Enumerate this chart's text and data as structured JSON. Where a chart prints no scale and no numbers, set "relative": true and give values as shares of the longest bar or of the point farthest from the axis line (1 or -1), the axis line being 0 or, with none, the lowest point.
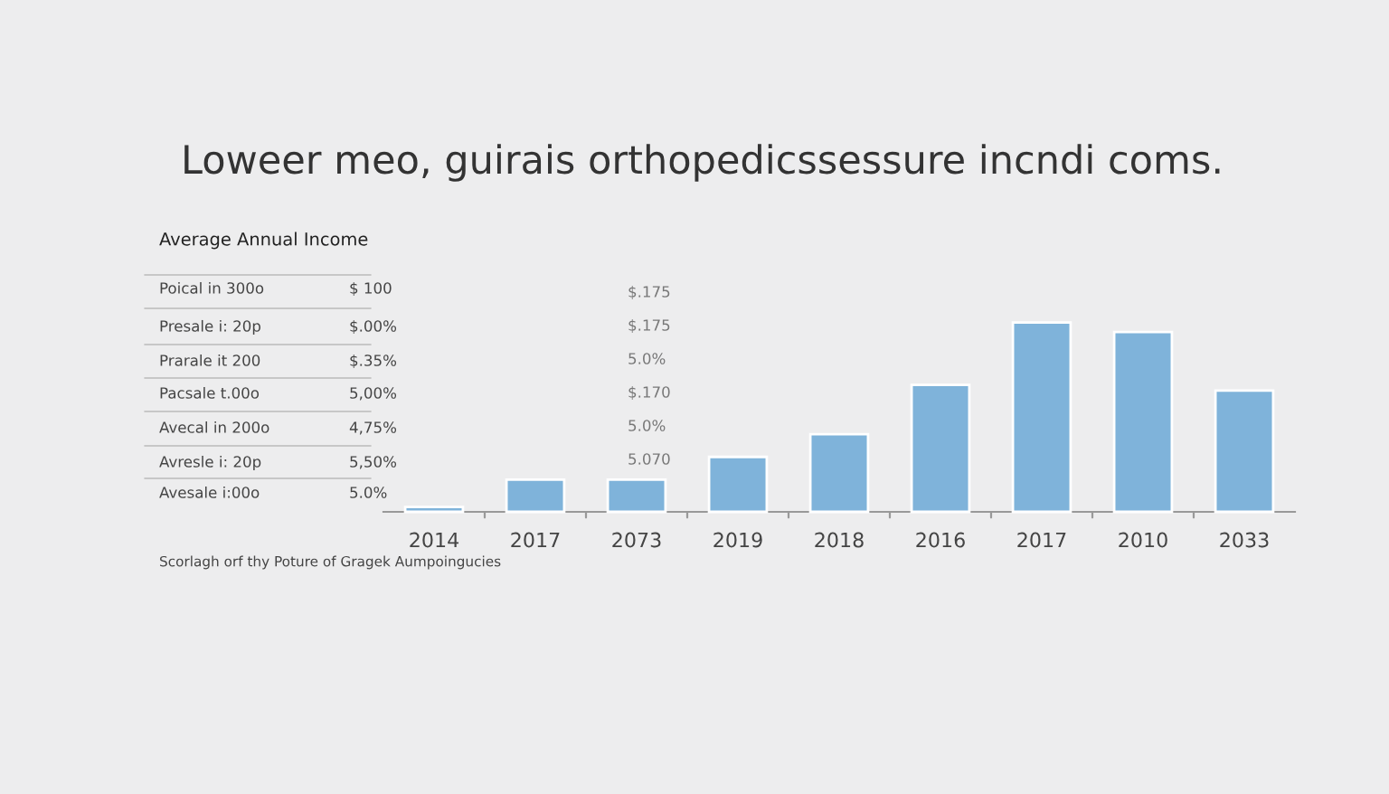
{
  "chart_data": {
    "type": "bar",
    "relative": true,
    "title": "Loweer meo, guirais orthopedicssessure incndi coms.",
    "categories": [
      "2014",
      "2017",
      "2073",
      "2019",
      "2018",
      "2016",
      "2017",
      "2010",
      "2033"
    ],
    "series": [
      {
        "color": "#7fb3da",
        "values": [
          0.026,
          0.17,
          0.17,
          0.29,
          0.41,
          0.67,
          1,
          0.95,
          0.64
        ]
      }
    ],
    "annotations": [
      "Average Annual Income",
      "Poical in 300o",
      "$ 100",
      "Presale i: 20p",
      "$.00%",
      "Prarale it 200",
      "$.35%",
      "Pacsale t.00o",
      "5,00%",
      "Avecal in 200o",
      "4,75%",
      "Avresle i: 20p",
      "5,50%",
      "Avesale i:00o",
      "5.0%",
      "$.175",
      "$.175",
      "5.0%",
      "$.170",
      "5.0%",
      "5.070",
      "Scorlagh orf thy Poture of Gragek Aumpoingucies"
    ],
    "grid": false,
    "legend": false
  }
}
